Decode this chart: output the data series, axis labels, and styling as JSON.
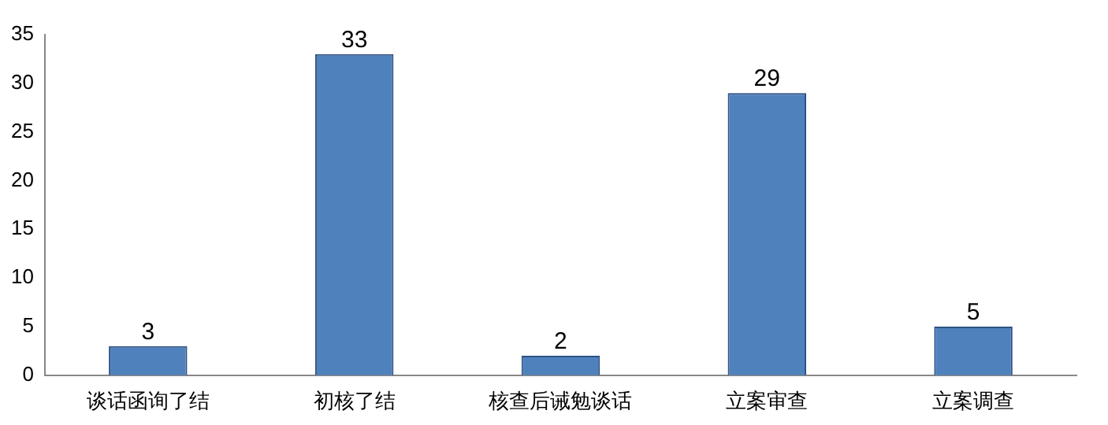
{
  "chart_data": {
    "type": "bar",
    "categories": [
      "谈话函询了结",
      "初核了结",
      "核查后诫勉谈话",
      "立案审查",
      "立案调查"
    ],
    "values": [
      3,
      33,
      2,
      29,
      5
    ],
    "color": "#4f81bd",
    "ylim": [
      0,
      35
    ],
    "yticks": [
      0,
      5,
      10,
      15,
      20,
      25,
      30,
      35
    ],
    "grid": false,
    "legend": false,
    "data_labels": true
  }
}
